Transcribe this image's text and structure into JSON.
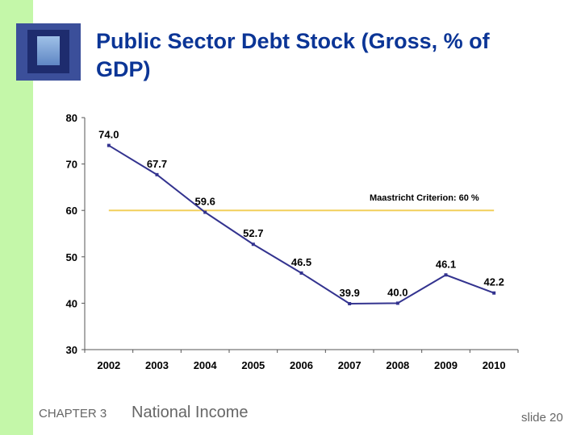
{
  "slide": {
    "title": "Public Sector Debt Stock (Gross, % of GDP)",
    "chapter": "CHAPTER 3",
    "topic": "National Income",
    "slide_number": "slide 20",
    "colors": {
      "sidebar": "#c4f7a9",
      "title": "#0b3596",
      "series": "#33338f",
      "reference": "#f2cf5b"
    }
  },
  "chart_data": {
    "type": "line",
    "title": "",
    "xlabel": "",
    "ylabel": "",
    "categories": [
      "2002",
      "2003",
      "2004",
      "2005",
      "2006",
      "2007",
      "2008",
      "2009",
      "2010"
    ],
    "values": [
      74.0,
      67.7,
      59.6,
      52.7,
      46.5,
      39.9,
      40.0,
      46.1,
      42.2
    ],
    "data_labels": [
      "74.0",
      "67.7",
      "59.6",
      "52.7",
      "46.5",
      "39.9",
      "40.0",
      "46.1",
      "42.2"
    ],
    "ylim": [
      30,
      80
    ],
    "yticks": [
      30,
      40,
      50,
      60,
      70,
      80
    ],
    "grid": false,
    "reference_line": {
      "value": 60,
      "label": "Maastricht Criterion: 60 %"
    }
  }
}
